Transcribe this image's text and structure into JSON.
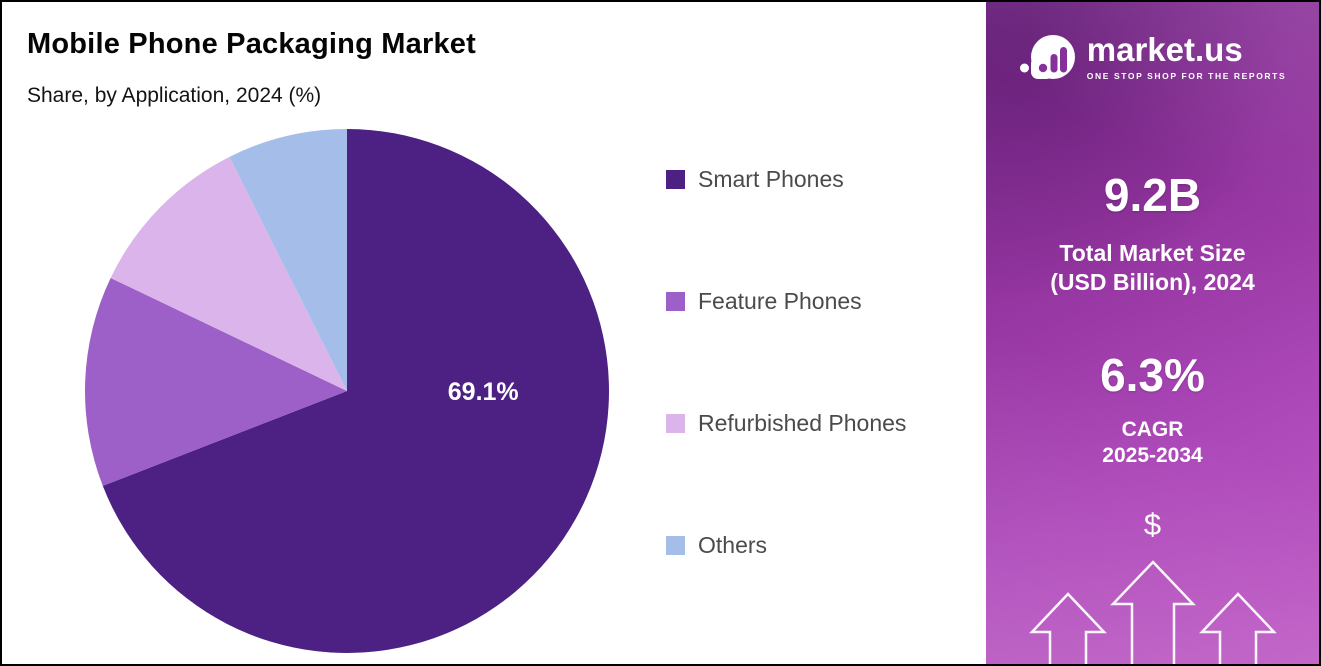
{
  "header": {
    "title": "Mobile Phone Packaging Market",
    "subtitle": "Share, by Application, 2024 (%)"
  },
  "chart_data": {
    "type": "pie",
    "title": "Mobile Phone Packaging Market",
    "subtitle": "Share, by Application, 2024 (%)",
    "unit": "%",
    "legend_position": "right",
    "start_angle_deg": 0,
    "direction": "clockwise",
    "slices": [
      {
        "label": "Smart Phones",
        "value": 69.1,
        "color": "#4c2183",
        "data_label": "69.1%",
        "label_offset": {
          "angle_deg": 91,
          "radius_frac": 0.52
        }
      },
      {
        "label": "Feature Phones",
        "value": 13.0,
        "color": "#9d5fc8",
        "data_label": ""
      },
      {
        "label": "Refurbished Phones",
        "value": 10.5,
        "color": "#dab4ea",
        "data_label": ""
      },
      {
        "label": "Others",
        "value": 7.4,
        "color": "#a5bee9",
        "data_label": ""
      }
    ]
  },
  "sidebar": {
    "brand": {
      "name": "market.us",
      "tagline": "ONE STOP SHOP FOR THE REPORTS"
    },
    "stat_market_size": {
      "value": "9.2B",
      "label_line1": "Total Market Size",
      "label_line2": "(USD Billion), 2024"
    },
    "stat_cagr": {
      "value": "6.3%",
      "label_line1": "CAGR",
      "label_line2": "2025-2034"
    },
    "currency_symbol": "$"
  }
}
